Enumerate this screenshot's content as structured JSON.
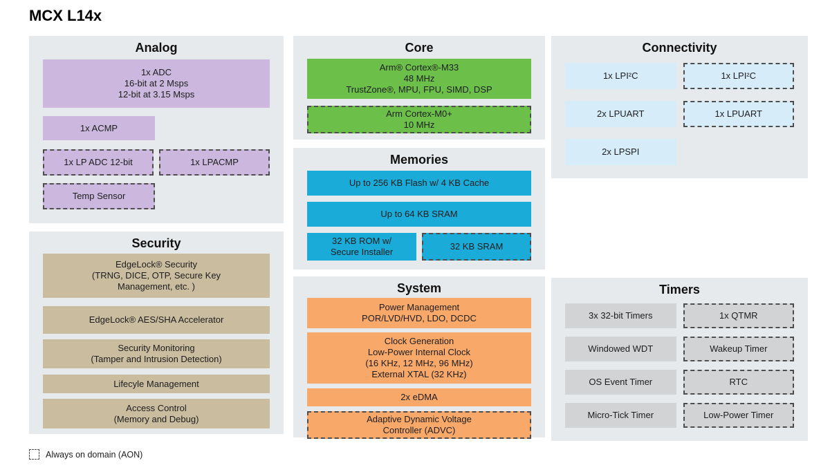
{
  "title": "MCX L14x",
  "colors": {
    "panel_bg": "#e7eaec",
    "analog": "#ccb8de",
    "core": "#6cc04a",
    "memories": "#1aabd8",
    "system": "#f8a868",
    "connectivity": "#d6ecf8",
    "security": "#cabc9f",
    "timers": "#d2d3d4",
    "dashed_border": "#4d4d4d"
  },
  "panels": {
    "analog": {
      "title": "Analog",
      "blocks": {
        "adc": "1x ADC\n16-bit at 2 Msps\n12-bit at 3.15 Msps",
        "acmp": "1x ACMP",
        "lp_adc": "1x LP ADC 12-bit",
        "lpacmp": "1x LPACMP",
        "temp_sensor": "Temp Sensor"
      }
    },
    "security": {
      "title": "Security",
      "blocks": {
        "edgelock_security": "EdgeLock® Security\n(TRNG, DICE, OTP, Secure Key\nManagement, etc. )",
        "aes_sha": "EdgeLock® AES/SHA Accelerator",
        "security_monitoring": "Security Monitoring\n(Tamper and Intrusion Detection)",
        "lifecycle": "Lifecyle Management",
        "access_control": "Access Control\n(Memory and Debug)"
      }
    },
    "core": {
      "title": "Core",
      "blocks": {
        "m33": "Arm® Cortex®-M33\n48 MHz\nTrustZone®, MPU, FPU, SIMD, DSP",
        "m0plus": "Arm Cortex-M0+\n10 MHz"
      }
    },
    "memories": {
      "title": "Memories",
      "blocks": {
        "flash": "Up to 256 KB Flash w/ 4 KB Cache",
        "sram64": "Up to 64 KB SRAM",
        "rom": "32 KB ROM w/\nSecure Installer",
        "sram32": "32 KB SRAM"
      }
    },
    "system": {
      "title": "System",
      "blocks": {
        "power": "Power Management\nPOR/LVD/HVD, LDO, DCDC",
        "clock": "Clock Generation\nLow-Power Internal Clock\n(16 KHz, 12 MHz, 96 MHz)\nExternal XTAL (32 KHz)",
        "edma": "2x eDMA",
        "advc": "Adaptive Dynamic Voltage\nController (ADVC)"
      }
    },
    "connectivity": {
      "title": "Connectivity",
      "blocks": {
        "lpi2c_main": "1x LPI²C",
        "lpi2c_aon": "1x LPI²C",
        "lpuart_main": "2x LPUART",
        "lpuart_aon": "1x LPUART",
        "lpspi": "2x LPSPI"
      }
    },
    "timers": {
      "title": "Timers",
      "blocks": {
        "timers_32bit": "3x 32-bit Timers",
        "qtmr": "1x QTMR",
        "windowed_wdt": "Windowed WDT",
        "wakeup_timer": "Wakeup Timer",
        "os_event_timer": "OS Event Timer",
        "rtc": "RTC",
        "micro_tick_timer": "Micro-Tick Timer",
        "low_power_timer": "Low-Power Timer"
      }
    }
  },
  "legend": {
    "label": "Always on domain (AON)"
  }
}
